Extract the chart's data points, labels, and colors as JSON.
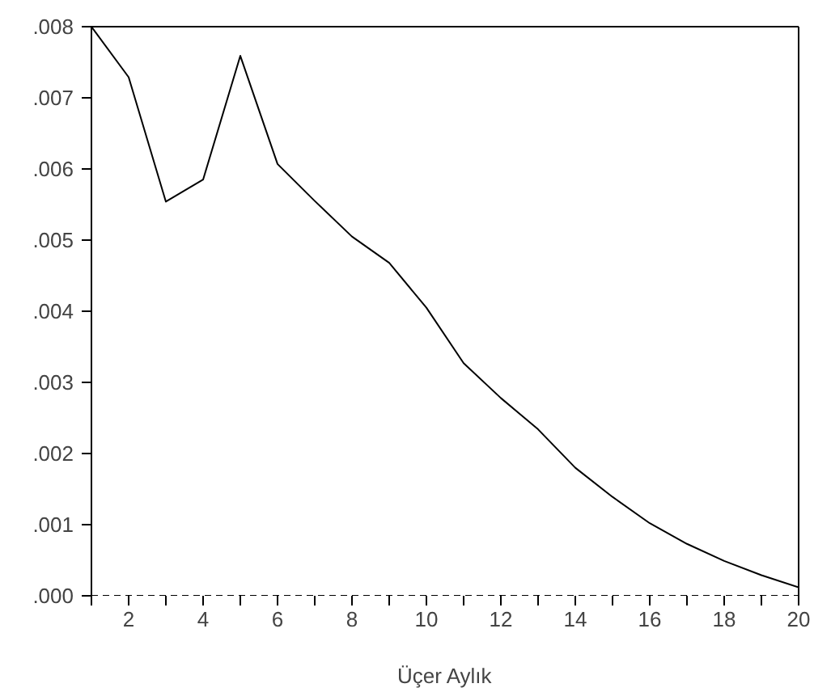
{
  "chart_data": {
    "type": "line",
    "xlabel": "Üçer Aylık",
    "x": [
      1,
      2,
      3,
      4,
      5,
      6,
      7,
      8,
      9,
      10,
      11,
      12,
      13,
      14,
      15,
      16,
      17,
      18,
      19,
      20
    ],
    "series": [
      {
        "color": "#000000",
        "values": [
          0.008,
          0.00729,
          0.00554,
          0.00585,
          0.00759,
          0.00607,
          0.00555,
          0.00505,
          0.00468,
          0.00405,
          0.00327,
          0.00278,
          0.00234,
          0.0018,
          0.00139,
          0.00102,
          0.00073,
          0.00049,
          0.00029,
          0.00012
        ]
      }
    ],
    "xlim": [
      1,
      20
    ],
    "ylim": [
      0,
      0.008
    ],
    "xticks": [
      {
        "value": 1,
        "label": null
      },
      2,
      {
        "value": 3,
        "label": null
      },
      4,
      {
        "value": 5,
        "label": null
      },
      6,
      {
        "value": 7,
        "label": null
      },
      8,
      {
        "value": 9,
        "label": null
      },
      10,
      {
        "value": 11,
        "label": null
      },
      12,
      {
        "value": 13,
        "label": null
      },
      14,
      {
        "value": 15,
        "label": null
      },
      16,
      {
        "value": 17,
        "label": null
      },
      18,
      {
        "value": 19,
        "label": null
      },
      20
    ],
    "yticks": [
      {
        "value": 0,
        "label": ".000"
      },
      {
        "value": 0.001,
        "label": ".001"
      },
      {
        "value": 0.002,
        "label": ".002"
      },
      {
        "value": 0.003,
        "label": ".003"
      },
      {
        "value": 0.004,
        "label": ".004"
      },
      {
        "value": 0.005,
        "label": ".005"
      },
      {
        "value": 0.006,
        "label": ".006"
      },
      {
        "value": 0.007,
        "label": ".007"
      },
      {
        "value": 0.008,
        "label": ".008"
      }
    ],
    "ref_lines": [
      {
        "axis": "y",
        "value": 0,
        "color": "#000000",
        "line_style": "dashed"
      }
    ],
    "grid": false,
    "line_style": "solid",
    "marker": "none"
  }
}
